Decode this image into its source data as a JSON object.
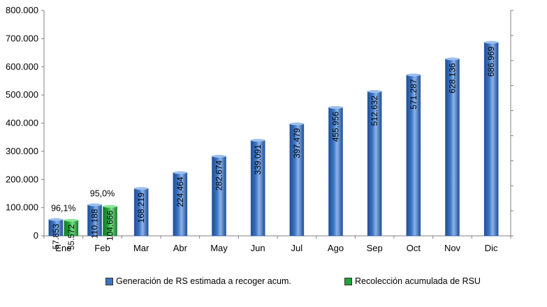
{
  "chart_data": {
    "type": "bar",
    "categories": [
      "Ene",
      "Feb",
      "Mar",
      "Abr",
      "May",
      "Jun",
      "Jul",
      "Ago",
      "Sep",
      "Oct",
      "Nov",
      "Dic"
    ],
    "series": [
      {
        "name": "Generación de RS estimada a recoger acum.",
        "color": "#3C74C2",
        "values": [
          57853,
          110188,
          168219,
          224464,
          282674,
          339091,
          397479,
          455956,
          512632,
          571287,
          628136,
          686969
        ],
        "labels": [
          "57.853",
          "110.188",
          "168.219",
          "224.464",
          "282.674",
          "339.091",
          "397.479",
          "455.956",
          "512.632",
          "571.287",
          "628.136",
          "686.969"
        ]
      },
      {
        "name": "Recolección acumulada de RSU",
        "color": "#21A33A",
        "values": [
          55572,
          104666,
          null,
          null,
          null,
          null,
          null,
          null,
          null,
          null,
          null,
          null
        ],
        "labels": [
          "55.572",
          "104.666",
          "",
          "",
          "",
          "",
          "",
          "",
          "",
          "",
          "",
          ""
        ]
      }
    ],
    "annotations": [
      {
        "category": "Ene",
        "text": "96,1%"
      },
      {
        "category": "Feb",
        "text": "95,0%"
      }
    ],
    "ylim": [
      0,
      800000
    ],
    "yticks": [
      "0",
      "100.000",
      "200.000",
      "300.000",
      "400.000",
      "500.000",
      "600.000",
      "700.000",
      "800.000"
    ],
    "legend_position": "bottom"
  }
}
